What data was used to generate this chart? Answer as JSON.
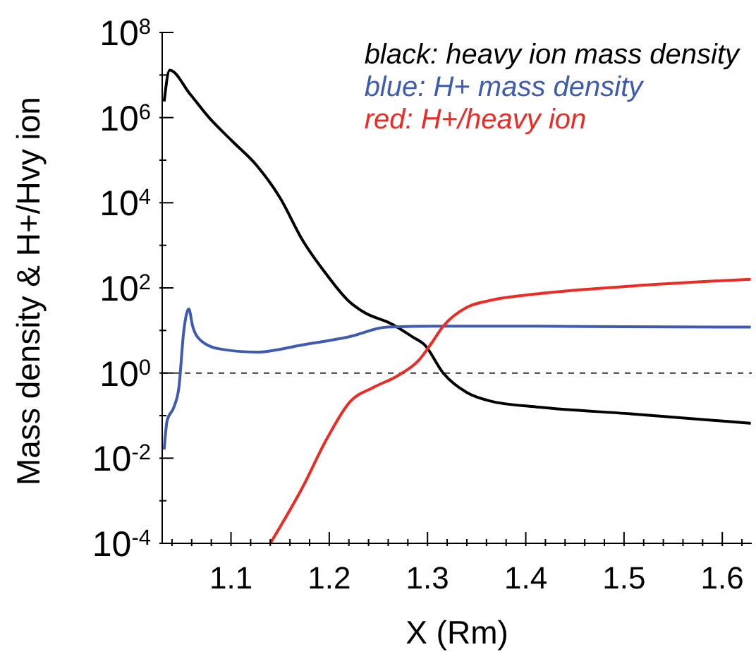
{
  "chart_data": {
    "type": "line",
    "xlabel": "X (Rm)",
    "ylabel": "Mass density & H+/Hvy ion",
    "log": "y",
    "xlim": [
      1.03,
      1.63
    ],
    "ylim": [
      0.0001,
      100000000
    ],
    "xticks": [
      {
        "value": 1.04,
        "label": null
      },
      {
        "value": 1.06,
        "label": null
      },
      {
        "value": 1.08,
        "label": null
      },
      1.1,
      {
        "value": 1.12,
        "label": null
      },
      {
        "value": 1.14,
        "label": null
      },
      {
        "value": 1.16,
        "label": null
      },
      {
        "value": 1.18,
        "label": null
      },
      1.2,
      {
        "value": 1.22,
        "label": null
      },
      {
        "value": 1.24,
        "label": null
      },
      {
        "value": 1.26,
        "label": null
      },
      {
        "value": 1.28,
        "label": null
      },
      1.3,
      {
        "value": 1.32,
        "label": null
      },
      {
        "value": 1.34,
        "label": null
      },
      {
        "value": 1.36,
        "label": null
      },
      {
        "value": 1.38,
        "label": null
      },
      1.4,
      {
        "value": 1.42,
        "label": null
      },
      {
        "value": 1.44,
        "label": null
      },
      {
        "value": 1.46,
        "label": null
      },
      {
        "value": 1.48,
        "label": null
      },
      1.5,
      {
        "value": 1.52,
        "label": null
      },
      {
        "value": 1.54,
        "label": null
      },
      {
        "value": 1.56,
        "label": null
      },
      {
        "value": 1.58,
        "label": null
      },
      1.6,
      {
        "value": 1.62,
        "label": null
      }
    ],
    "yticks": [
      {
        "value": 0.0001,
        "label": "10$^{-4}$"
      },
      {
        "value": 0.001,
        "label": null
      },
      {
        "value": 0.01,
        "label": "10$^{-2}$"
      },
      {
        "value": 0.1,
        "label": null
      },
      {
        "value": 1,
        "label": "10$^{0}$"
      },
      {
        "value": 10,
        "label": null
      },
      {
        "value": 100,
        "label": "10$^{2}$"
      },
      {
        "value": 1000,
        "label": null
      },
      {
        "value": 10000,
        "label": "10$^{4}$"
      },
      {
        "value": 100000,
        "label": null
      },
      {
        "value": 1000000,
        "label": "10$^{6}$"
      },
      {
        "value": 10000000,
        "label": null
      },
      {
        "value": 100000000,
        "label": "10$^{8}$"
      }
    ],
    "grid": false,
    "legend": "top right",
    "ref_lines": [
      {
        "axis": "y",
        "value": 1,
        "color": "#333333",
        "line_style": "dashed"
      }
    ],
    "series": [
      {
        "name": "black: heavy ion mass density",
        "color": "#000000",
        "x": [
          1.032,
          1.0376,
          1.0586,
          1.078,
          1.102,
          1.126,
          1.15,
          1.173,
          1.197,
          1.221,
          1.235,
          1.264,
          1.285,
          1.297,
          1.316,
          1.34,
          1.364,
          1.411,
          1.507,
          1.629
        ],
        "values": [
          2400000,
          13000000,
          3500000,
          980000,
          270000,
          76000,
          13000,
          1300,
          210,
          46,
          27,
          14,
          7,
          4.6,
          1.0,
          0.35,
          0.22,
          0.16,
          0.11,
          0.066
        ]
      },
      {
        "name": "blue: H+ mass density",
        "color": "#3f5bb0",
        "x": [
          1.032,
          1.035,
          1.042,
          1.047,
          1.052,
          1.057,
          1.061,
          1.069,
          1.088,
          1.126,
          1.173,
          1.221,
          1.259,
          1.311,
          1.4,
          1.5,
          1.629
        ],
        "values": [
          0.016,
          0.076,
          0.16,
          0.46,
          9.8,
          32,
          12.6,
          5.9,
          3.7,
          3.1,
          4.6,
          7.2,
          12,
          12.6,
          12.6,
          12.3,
          12
        ]
      },
      {
        "name": "red: H+/heavy ion",
        "color": "#ee2a24",
        "x": [
          1.14,
          1.173,
          1.197,
          1.221,
          1.245,
          1.269,
          1.292,
          1.304,
          1.316,
          1.34,
          1.364,
          1.411,
          1.507,
          1.629
        ],
        "values": [
          0.0001,
          0.0021,
          0.027,
          0.21,
          0.46,
          0.85,
          2.1,
          5,
          12.6,
          35,
          51,
          72,
          110,
          160
        ]
      }
    ]
  }
}
